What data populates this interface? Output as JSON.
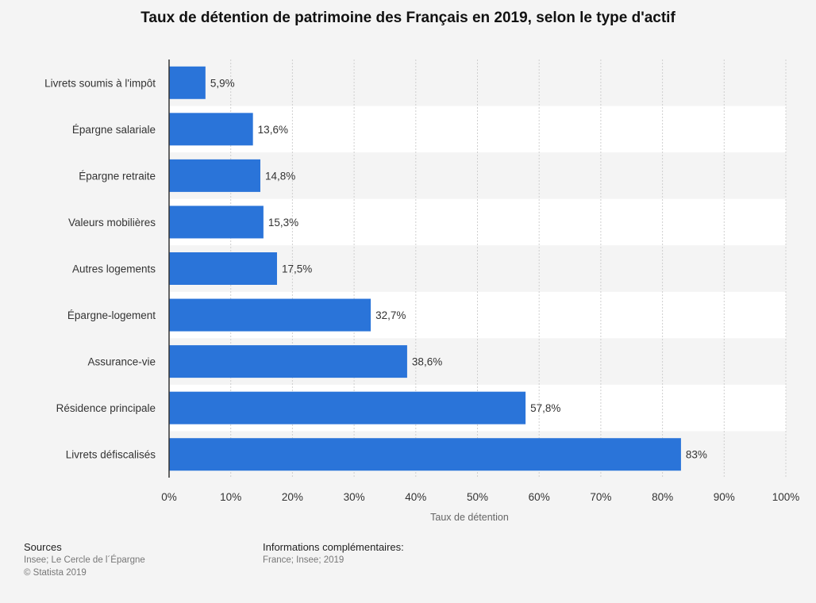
{
  "colors": {
    "bar": "#2a74d9",
    "band": "#ffffff",
    "background": "#f4f4f4"
  },
  "chart_data": {
    "type": "bar",
    "orientation": "horizontal",
    "title": "Taux de détention de patrimoine des Français en 2019, selon le type d'actif",
    "xlabel": "Taux de détention",
    "ylabel": "",
    "xlim": [
      0,
      100
    ],
    "grid": true,
    "categories": [
      "Livrets soumis à l'impôt",
      "Épargne salariale",
      "Épargne retraite",
      "Valeurs mobilières",
      "Autres logements",
      "Épargne-logement",
      "Assurance-vie",
      "Résidence principale",
      "Livrets défiscalisés"
    ],
    "values": [
      5.9,
      13.6,
      14.8,
      15.3,
      17.5,
      32.7,
      38.6,
      57.8,
      83
    ],
    "value_labels": [
      "5,9%",
      "13,6%",
      "14,8%",
      "15,3%",
      "17,5%",
      "32,7%",
      "38,6%",
      "57,8%",
      "83%"
    ],
    "ticks": [
      0,
      10,
      20,
      30,
      40,
      50,
      60,
      70,
      80,
      90,
      100
    ],
    "tick_labels": [
      "0%",
      "10%",
      "20%",
      "30%",
      "40%",
      "50%",
      "60%",
      "70%",
      "80%",
      "90%",
      "100%"
    ]
  },
  "footer": {
    "sources_title": "Sources",
    "sources_text": "Insee; Le Cercle de l´Épargne",
    "copyright": "© Statista 2019",
    "info_title": "Informations complémentaires:",
    "info_text": "France; Insee; 2019"
  }
}
